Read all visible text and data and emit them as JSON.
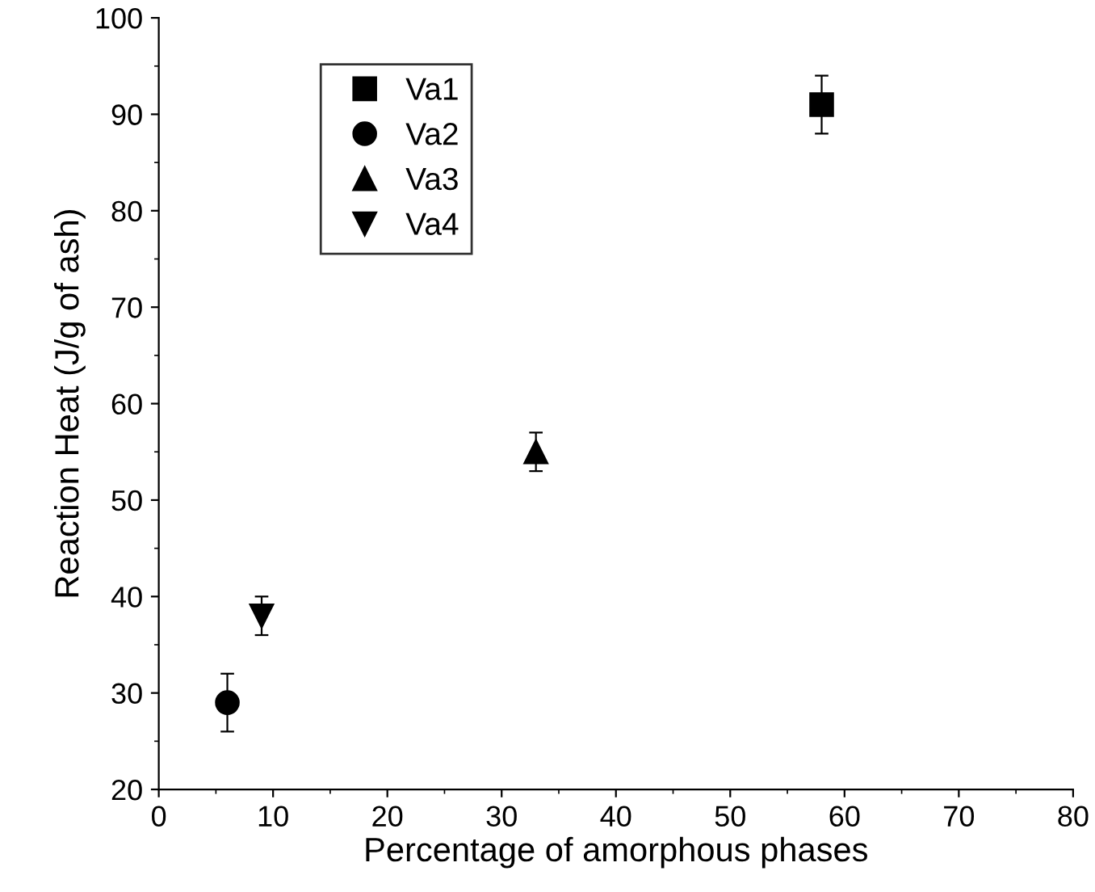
{
  "chart_data": {
    "type": "scatter",
    "xlabel": "Percentage of amorphous phases",
    "ylabel": "Reaction Heat (J/g of ash)",
    "xlim": [
      0,
      80
    ],
    "xticks": [
      0,
      10,
      20,
      30,
      40,
      50,
      60,
      70,
      80
    ],
    "ylim": [
      20,
      100
    ],
    "yticks": [
      20,
      30,
      40,
      50,
      60,
      70,
      80,
      90,
      100
    ],
    "grid": false,
    "legend": "top left",
    "series": [
      {
        "name": "Va1",
        "color": "#000000",
        "marker": "square",
        "x": [
          58
        ],
        "values": [
          91
        ],
        "errors": [
          3
        ]
      },
      {
        "name": "Va2",
        "color": "#000000",
        "marker": "circle",
        "x": [
          6
        ],
        "values": [
          29
        ],
        "errors": [
          3
        ]
      },
      {
        "name": "Va3",
        "color": "#000000",
        "marker": "triangle",
        "x": [
          33
        ],
        "values": [
          55
        ],
        "errors": [
          2
        ]
      },
      {
        "name": "Va4",
        "color": "#000000",
        "marker": "triangle_down",
        "x": [
          9
        ],
        "values": [
          38
        ],
        "errors": [
          2
        ]
      }
    ]
  }
}
